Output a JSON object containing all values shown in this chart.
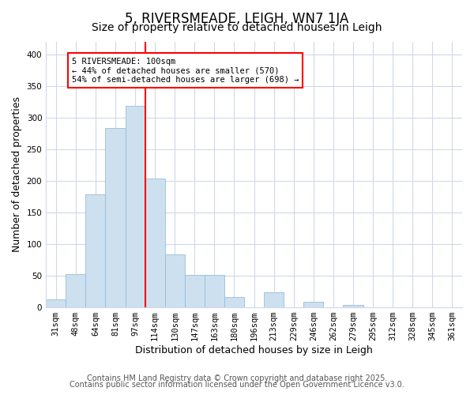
{
  "title": "5, RIVERSMEADE, LEIGH, WN7 1JA",
  "subtitle": "Size of property relative to detached houses in Leigh",
  "xlabel": "Distribution of detached houses by size in Leigh",
  "ylabel": "Number of detached properties",
  "bar_labels": [
    "31sqm",
    "48sqm",
    "64sqm",
    "81sqm",
    "97sqm",
    "114sqm",
    "130sqm",
    "147sqm",
    "163sqm",
    "180sqm",
    "196sqm",
    "213sqm",
    "229sqm",
    "246sqm",
    "262sqm",
    "279sqm",
    "295sqm",
    "312sqm",
    "328sqm",
    "345sqm",
    "361sqm"
  ],
  "bar_values": [
    13,
    53,
    178,
    283,
    318,
    204,
    84,
    51,
    51,
    16,
    0,
    24,
    0,
    9,
    0,
    4,
    0,
    0,
    0,
    0,
    0
  ],
  "bar_color": "#cce0f0",
  "bar_edge_color": "#9abcd6",
  "vline_x_index": 4,
  "vline_color": "red",
  "ylim": [
    0,
    420
  ],
  "yticks": [
    0,
    50,
    100,
    150,
    200,
    250,
    300,
    350,
    400
  ],
  "annotation_text": "5 RIVERSMEADE: 100sqm\n← 44% of detached houses are smaller (570)\n54% of semi-detached houses are larger (698) →",
  "annotation_box_color": "white",
  "annotation_box_edge_color": "red",
  "footer_line1": "Contains HM Land Registry data © Crown copyright and database right 2025.",
  "footer_line2": "Contains public sector information licensed under the Open Government Licence v3.0.",
  "background_color": "#ffffff",
  "plot_background_color": "#ffffff",
  "grid_color": "#d0d8e8",
  "title_fontsize": 12,
  "subtitle_fontsize": 10,
  "axis_label_fontsize": 9,
  "tick_fontsize": 7.5,
  "footer_fontsize": 7
}
